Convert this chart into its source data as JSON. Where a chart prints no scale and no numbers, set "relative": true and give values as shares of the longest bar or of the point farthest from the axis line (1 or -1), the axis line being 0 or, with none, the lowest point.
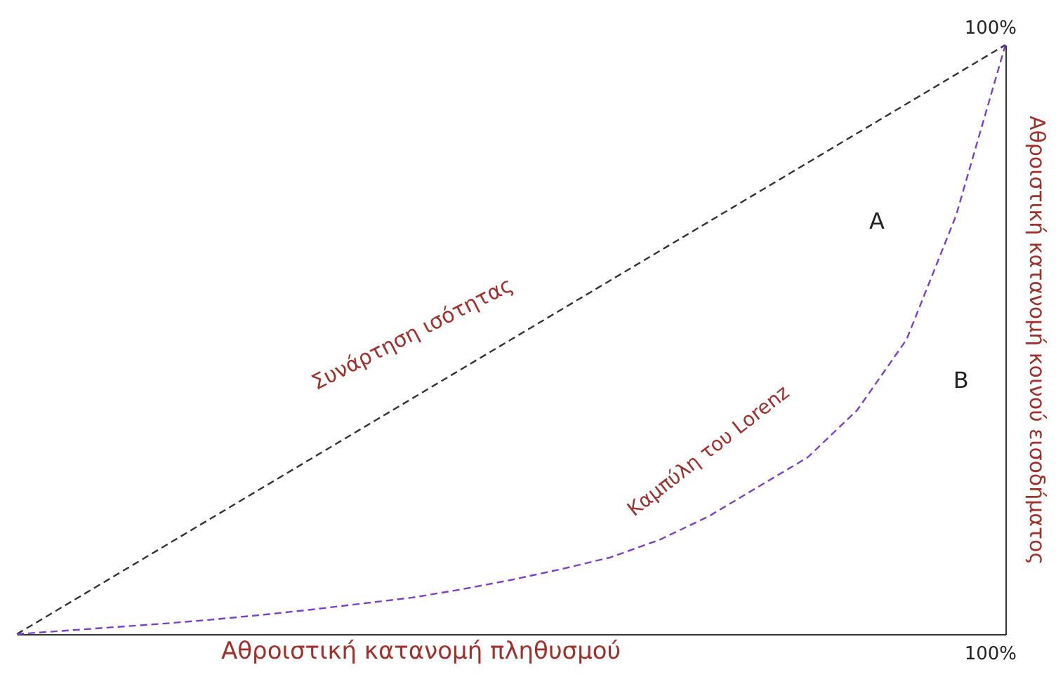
{
  "chart_data": {
    "type": "line",
    "relative": true,
    "xlabel": "Αθροιστική κατανομή πληθυσμού",
    "ylabel": "Αθροιστική κατανομή κοινού εισοδήματος",
    "categories": [
      null,
      null,
      null,
      null,
      null,
      null,
      null,
      null,
      null,
      null,
      null,
      null,
      null,
      null,
      null,
      null,
      null,
      null,
      null,
      null,
      null
    ],
    "series": [
      {
        "values": [
          0,
          0.05,
          0.1,
          0.15,
          0.2,
          0.25,
          0.3,
          0.35,
          0.4,
          0.45,
          0.5,
          0.55,
          0.6,
          0.65,
          0.7,
          0.75,
          0.8,
          0.85,
          0.9,
          0.95,
          1
        ],
        "color": "#333333",
        "line_style": "dashed"
      },
      {
        "values": [
          0,
          0.006,
          0.012,
          0.018,
          0.025,
          0.033,
          0.042,
          0.052,
          0.062,
          0.076,
          0.092,
          0.11,
          0.13,
          0.16,
          0.2,
          0.25,
          0.3,
          0.38,
          0.5,
          0.71,
          1
        ],
        "color": "#7b3fd0",
        "line_style": "dashed"
      }
    ],
    "annotations": [
      "Συνάρτηση ισότητας",
      "Καμπύλη του Lorenz",
      "A",
      "B",
      "100%",
      "100%"
    ]
  }
}
